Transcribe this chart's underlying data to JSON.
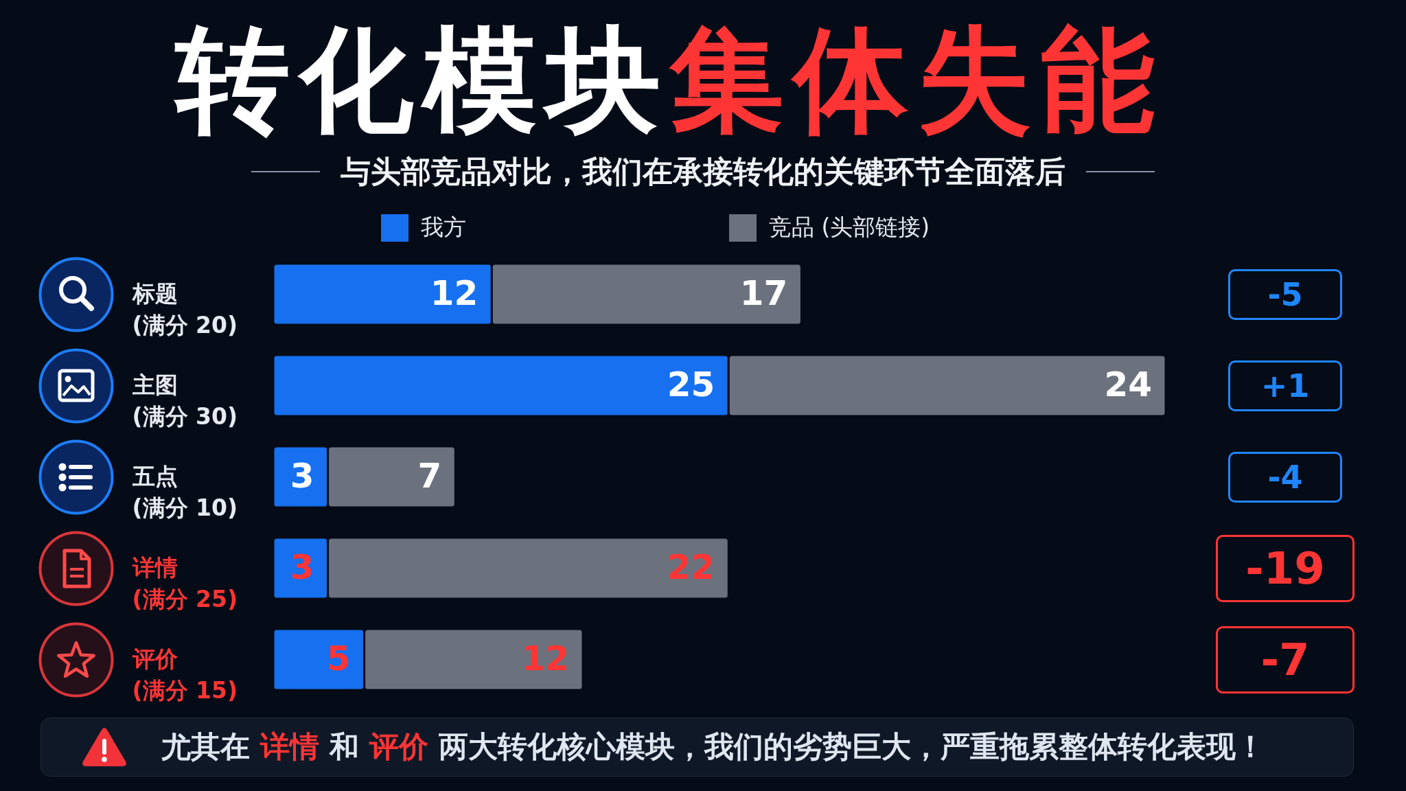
{
  "chart_data": {
    "type": "bar",
    "orientation": "horizontal",
    "stacked": true,
    "title": "转化模块集体失能",
    "subtitle": "与头部竞品对比，我们在承接转化的关键环节全面落后",
    "categories": [
      "标题\n(满分 20)",
      "主图\n(满分 30)",
      "五点\n(满分 10)",
      "详情\n(满分 25)",
      "评价\n(满分 15)"
    ],
    "series": [
      {
        "name": "我方",
        "color": "#1670f0",
        "values": [
          12,
          25,
          3,
          3,
          5
        ]
      },
      {
        "name": "竞品 (头部链接)",
        "color": "#6b727d",
        "values": [
          17,
          24,
          7,
          22,
          12
        ]
      }
    ],
    "data_labels": true,
    "legend": "top",
    "tick_labels": "y",
    "annotations": [
      "-5",
      "+1",
      "-4",
      "-19",
      "-7",
      "尤其在 详情 和 评价 两大转化核心模块，我们的劣势巨大，严重拖累整体转化表现！"
    ]
  }
}
